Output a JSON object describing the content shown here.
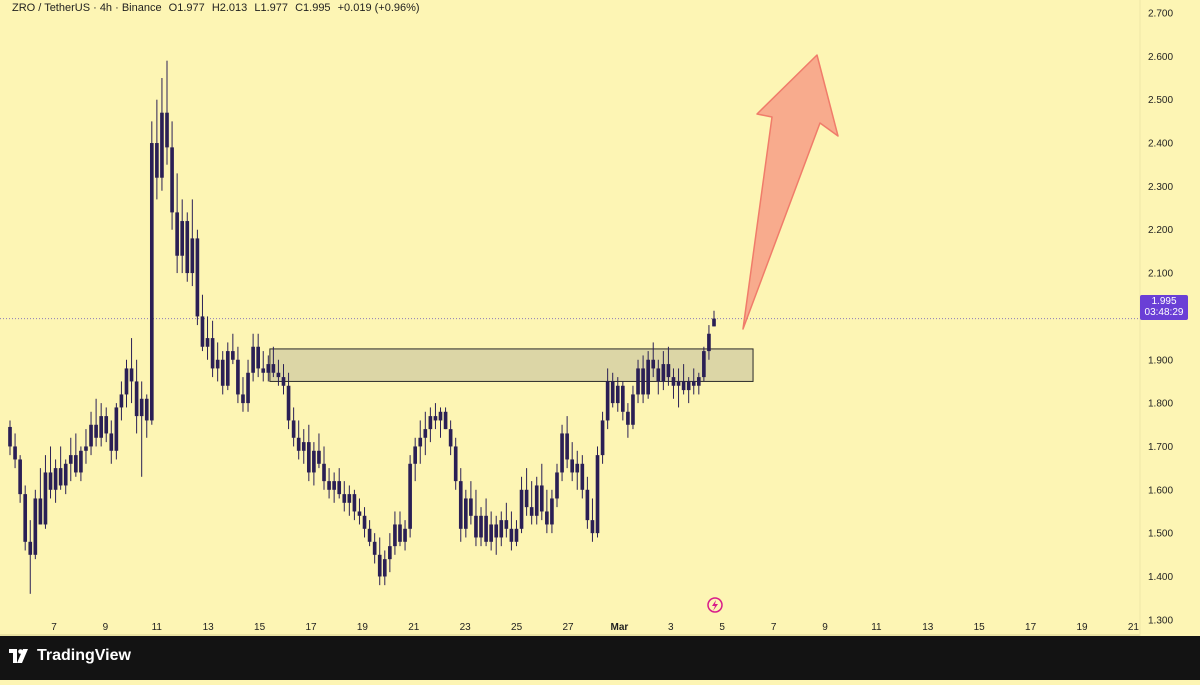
{
  "header": {
    "symbol": "ZRO / TetherUS · 4h · Binance",
    "open": "O1.977",
    "high": "H2.013",
    "low": "L1.977",
    "close": "C1.995",
    "change": "+0.019 (+0.96%)"
  },
  "price_tag": {
    "price": "1.995",
    "countdown": "03:48:29",
    "color": "#6a3fd6"
  },
  "footer": {
    "brand": "TradingView"
  },
  "colors": {
    "background": "#fdf5b4",
    "candle": "#2a1f55",
    "arrow": "#f8ab8d",
    "box": "#dcd6a6"
  },
  "chart_data": {
    "type": "candlestick",
    "title": "",
    "y_ticks": [
      "2.700",
      "2.600",
      "2.500",
      "2.400",
      "2.300",
      "2.200",
      "2.100",
      "1.900",
      "1.800",
      "1.700",
      "1.600",
      "1.500",
      "1.400",
      "1.300"
    ],
    "y_tick_values": [
      2.7,
      2.6,
      2.5,
      2.4,
      2.3,
      2.2,
      2.1,
      1.9,
      1.8,
      1.7,
      1.6,
      1.5,
      1.4,
      1.3
    ],
    "ylim": [
      1.265,
      2.73
    ],
    "x_ticks": [
      "7",
      "9",
      "11",
      "13",
      "15",
      "17",
      "19",
      "21",
      "23",
      "25",
      "27",
      "Mar",
      "3",
      "5",
      "7",
      "9",
      "11",
      "13",
      "15",
      "17",
      "19",
      "21"
    ],
    "last_price": 1.995,
    "resistance_zone": {
      "low": 1.85,
      "high": 1.925,
      "from_day": 15.4,
      "to_day": 34.2
    },
    "projection": "up-arrow",
    "series": [
      {
        "ohlc": [
          [
            1.745,
            1.76,
            1.68,
            1.7
          ],
          [
            1.7,
            1.73,
            1.65,
            1.67
          ],
          [
            1.67,
            1.68,
            1.57,
            1.59
          ],
          [
            1.59,
            1.61,
            1.46,
            1.48
          ],
          [
            1.48,
            1.53,
            1.36,
            1.45
          ],
          [
            1.45,
            1.6,
            1.44,
            1.58
          ],
          [
            1.58,
            1.65,
            1.52,
            1.52
          ],
          [
            1.52,
            1.68,
            1.51,
            1.64
          ],
          [
            1.64,
            1.7,
            1.58,
            1.6
          ],
          [
            1.6,
            1.67,
            1.57,
            1.65
          ],
          [
            1.65,
            1.7,
            1.6,
            1.61
          ],
          [
            1.61,
            1.67,
            1.59,
            1.66
          ],
          [
            1.66,
            1.72,
            1.62,
            1.68
          ],
          [
            1.68,
            1.73,
            1.63,
            1.64
          ],
          [
            1.64,
            1.7,
            1.62,
            1.69
          ],
          [
            1.69,
            1.74,
            1.66,
            1.7
          ],
          [
            1.7,
            1.78,
            1.68,
            1.75
          ],
          [
            1.75,
            1.81,
            1.7,
            1.72
          ],
          [
            1.72,
            1.8,
            1.7,
            1.77
          ],
          [
            1.77,
            1.79,
            1.71,
            1.73
          ],
          [
            1.73,
            1.76,
            1.66,
            1.69
          ],
          [
            1.69,
            1.8,
            1.67,
            1.79
          ],
          [
            1.79,
            1.85,
            1.76,
            1.82
          ],
          [
            1.82,
            1.9,
            1.79,
            1.88
          ],
          [
            1.88,
            1.95,
            1.8,
            1.85
          ],
          [
            1.85,
            1.9,
            1.73,
            1.77
          ],
          [
            1.77,
            1.85,
            1.63,
            1.81
          ],
          [
            1.81,
            1.82,
            1.72,
            1.76
          ],
          [
            1.76,
            2.45,
            1.75,
            2.4
          ],
          [
            2.4,
            2.5,
            2.27,
            2.32
          ],
          [
            2.32,
            2.55,
            2.29,
            2.47
          ],
          [
            2.47,
            2.59,
            2.35,
            2.39
          ],
          [
            2.39,
            2.45,
            2.2,
            2.24
          ],
          [
            2.24,
            2.33,
            2.1,
            2.14
          ],
          [
            2.14,
            2.27,
            2.1,
            2.22
          ],
          [
            2.22,
            2.24,
            2.08,
            2.1
          ],
          [
            2.1,
            2.27,
            2.07,
            2.18
          ],
          [
            2.18,
            2.2,
            1.98,
            2.0
          ],
          [
            2.0,
            2.05,
            1.92,
            1.93
          ],
          [
            1.93,
            2.0,
            1.9,
            1.95
          ],
          [
            1.95,
            1.99,
            1.86,
            1.88
          ],
          [
            1.88,
            1.94,
            1.85,
            1.9
          ],
          [
            1.9,
            1.92,
            1.82,
            1.84
          ],
          [
            1.84,
            1.94,
            1.83,
            1.92
          ],
          [
            1.92,
            1.96,
            1.89,
            1.9
          ],
          [
            1.9,
            1.93,
            1.8,
            1.82
          ],
          [
            1.82,
            1.86,
            1.78,
            1.8
          ],
          [
            1.8,
            1.9,
            1.78,
            1.87
          ],
          [
            1.87,
            1.96,
            1.85,
            1.93
          ],
          [
            1.93,
            1.96,
            1.86,
            1.88
          ],
          [
            1.88,
            1.92,
            1.85,
            1.87
          ],
          [
            1.87,
            1.91,
            1.85,
            1.89
          ],
          [
            1.89,
            1.93,
            1.86,
            1.87
          ],
          [
            1.87,
            1.9,
            1.84,
            1.86
          ],
          [
            1.86,
            1.89,
            1.82,
            1.84
          ],
          [
            1.84,
            1.87,
            1.74,
            1.76
          ],
          [
            1.76,
            1.79,
            1.7,
            1.72
          ],
          [
            1.72,
            1.76,
            1.67,
            1.69
          ],
          [
            1.69,
            1.74,
            1.66,
            1.71
          ],
          [
            1.71,
            1.75,
            1.62,
            1.64
          ],
          [
            1.64,
            1.71,
            1.61,
            1.69
          ],
          [
            1.69,
            1.73,
            1.65,
            1.66
          ],
          [
            1.66,
            1.7,
            1.6,
            1.62
          ],
          [
            1.62,
            1.65,
            1.58,
            1.6
          ],
          [
            1.6,
            1.64,
            1.57,
            1.62
          ],
          [
            1.62,
            1.65,
            1.58,
            1.59
          ],
          [
            1.59,
            1.62,
            1.55,
            1.57
          ],
          [
            1.57,
            1.61,
            1.54,
            1.59
          ],
          [
            1.59,
            1.6,
            1.53,
            1.55
          ],
          [
            1.55,
            1.58,
            1.52,
            1.54
          ],
          [
            1.54,
            1.56,
            1.49,
            1.51
          ],
          [
            1.51,
            1.53,
            1.47,
            1.48
          ],
          [
            1.48,
            1.5,
            1.43,
            1.45
          ],
          [
            1.45,
            1.49,
            1.38,
            1.4
          ],
          [
            1.4,
            1.46,
            1.38,
            1.44
          ],
          [
            1.44,
            1.5,
            1.41,
            1.47
          ],
          [
            1.47,
            1.55,
            1.45,
            1.52
          ],
          [
            1.52,
            1.55,
            1.47,
            1.48
          ],
          [
            1.48,
            1.53,
            1.46,
            1.51
          ],
          [
            1.51,
            1.68,
            1.49,
            1.66
          ],
          [
            1.66,
            1.72,
            1.62,
            1.7
          ],
          [
            1.7,
            1.76,
            1.66,
            1.72
          ],
          [
            1.72,
            1.78,
            1.68,
            1.74
          ],
          [
            1.74,
            1.79,
            1.71,
            1.77
          ],
          [
            1.77,
            1.8,
            1.74,
            1.76
          ],
          [
            1.76,
            1.79,
            1.72,
            1.78
          ],
          [
            1.78,
            1.79,
            1.74,
            1.74
          ],
          [
            1.74,
            1.76,
            1.68,
            1.7
          ],
          [
            1.7,
            1.72,
            1.6,
            1.62
          ],
          [
            1.62,
            1.65,
            1.48,
            1.51
          ],
          [
            1.51,
            1.6,
            1.49,
            1.58
          ],
          [
            1.58,
            1.62,
            1.52,
            1.54
          ],
          [
            1.54,
            1.6,
            1.47,
            1.49
          ],
          [
            1.49,
            1.56,
            1.47,
            1.54
          ],
          [
            1.54,
            1.58,
            1.47,
            1.48
          ],
          [
            1.48,
            1.55,
            1.46,
            1.52
          ],
          [
            1.52,
            1.54,
            1.45,
            1.49
          ],
          [
            1.49,
            1.55,
            1.47,
            1.53
          ],
          [
            1.53,
            1.57,
            1.49,
            1.51
          ],
          [
            1.51,
            1.55,
            1.46,
            1.48
          ],
          [
            1.48,
            1.53,
            1.47,
            1.51
          ],
          [
            1.51,
            1.63,
            1.5,
            1.6
          ],
          [
            1.6,
            1.65,
            1.54,
            1.56
          ],
          [
            1.56,
            1.62,
            1.52,
            1.54
          ],
          [
            1.54,
            1.63,
            1.52,
            1.61
          ],
          [
            1.61,
            1.66,
            1.53,
            1.55
          ],
          [
            1.55,
            1.6,
            1.5,
            1.52
          ],
          [
            1.52,
            1.6,
            1.5,
            1.58
          ],
          [
            1.58,
            1.66,
            1.56,
            1.64
          ],
          [
            1.64,
            1.75,
            1.62,
            1.73
          ],
          [
            1.73,
            1.77,
            1.65,
            1.67
          ],
          [
            1.67,
            1.71,
            1.62,
            1.64
          ],
          [
            1.64,
            1.69,
            1.6,
            1.66
          ],
          [
            1.66,
            1.68,
            1.58,
            1.6
          ],
          [
            1.6,
            1.63,
            1.51,
            1.53
          ],
          [
            1.53,
            1.58,
            1.48,
            1.5
          ],
          [
            1.5,
            1.7,
            1.49,
            1.68
          ],
          [
            1.68,
            1.78,
            1.66,
            1.76
          ],
          [
            1.76,
            1.88,
            1.74,
            1.85
          ],
          [
            1.85,
            1.87,
            1.79,
            1.8
          ],
          [
            1.8,
            1.86,
            1.78,
            1.84
          ],
          [
            1.84,
            1.85,
            1.76,
            1.78
          ],
          [
            1.78,
            1.8,
            1.72,
            1.75
          ],
          [
            1.75,
            1.84,
            1.74,
            1.82
          ],
          [
            1.82,
            1.9,
            1.8,
            1.88
          ],
          [
            1.88,
            1.91,
            1.8,
            1.82
          ],
          [
            1.82,
            1.92,
            1.81,
            1.9
          ],
          [
            1.9,
            1.94,
            1.86,
            1.88
          ],
          [
            1.88,
            1.9,
            1.82,
            1.85
          ],
          [
            1.85,
            1.92,
            1.83,
            1.89
          ],
          [
            1.89,
            1.93,
            1.84,
            1.86
          ],
          [
            1.86,
            1.88,
            1.81,
            1.84
          ],
          [
            1.84,
            1.88,
            1.79,
            1.85
          ],
          [
            1.85,
            1.89,
            1.82,
            1.83
          ],
          [
            1.83,
            1.86,
            1.8,
            1.85
          ],
          [
            1.85,
            1.88,
            1.82,
            1.84
          ],
          [
            1.84,
            1.87,
            1.82,
            1.86
          ],
          [
            1.86,
            1.93,
            1.85,
            1.92
          ],
          [
            1.92,
            1.98,
            1.9,
            1.96
          ],
          [
            1.977,
            2.013,
            1.977,
            1.995
          ]
        ]
      }
    ]
  }
}
